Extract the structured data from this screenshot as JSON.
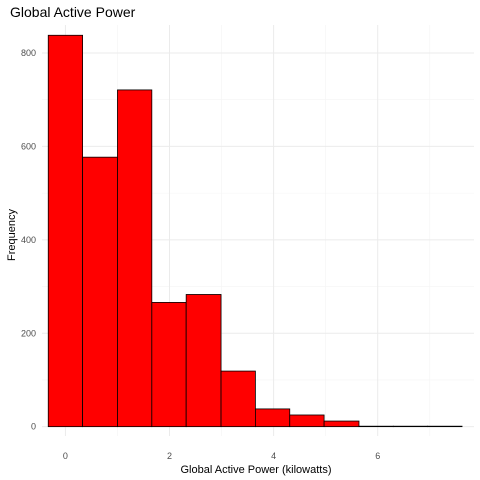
{
  "chart_data": {
    "type": "bar",
    "title": "Global Active Power",
    "xlabel": "Global Active Power (kilowatts)",
    "ylabel": "Frequency",
    "xlim": [
      -0.45,
      7.85
    ],
    "ylim": [
      -20,
      860
    ],
    "x_ticks": [
      0,
      2,
      4,
      6
    ],
    "x_tick_labels": [
      "0",
      "2",
      "4",
      "6"
    ],
    "y_ticks": [
      0,
      200,
      400,
      600,
      800
    ],
    "y_tick_labels": [
      "0",
      "200",
      "400",
      "600",
      "800"
    ],
    "grid": true,
    "legend": "none",
    "bar_fill": "#ff0000",
    "bar_outline": "#000000",
    "bins": [
      {
        "x0": -0.33,
        "x1": 0.33,
        "count": 838
      },
      {
        "x0": 0.33,
        "x1": 1.0,
        "count": 577
      },
      {
        "x0": 1.0,
        "x1": 1.66,
        "count": 721
      },
      {
        "x0": 1.66,
        "x1": 2.32,
        "count": 266
      },
      {
        "x0": 2.32,
        "x1": 2.99,
        "count": 283
      },
      {
        "x0": 2.99,
        "x1": 3.65,
        "count": 119
      },
      {
        "x0": 3.65,
        "x1": 4.31,
        "count": 38
      },
      {
        "x0": 4.31,
        "x1": 4.97,
        "count": 25
      },
      {
        "x0": 4.97,
        "x1": 5.64,
        "count": 12
      },
      {
        "x0": 5.64,
        "x1": 6.3,
        "count": 1
      },
      {
        "x0": 6.3,
        "x1": 6.96,
        "count": 1
      },
      {
        "x0": 6.96,
        "x1": 7.62,
        "count": 1
      }
    ]
  }
}
